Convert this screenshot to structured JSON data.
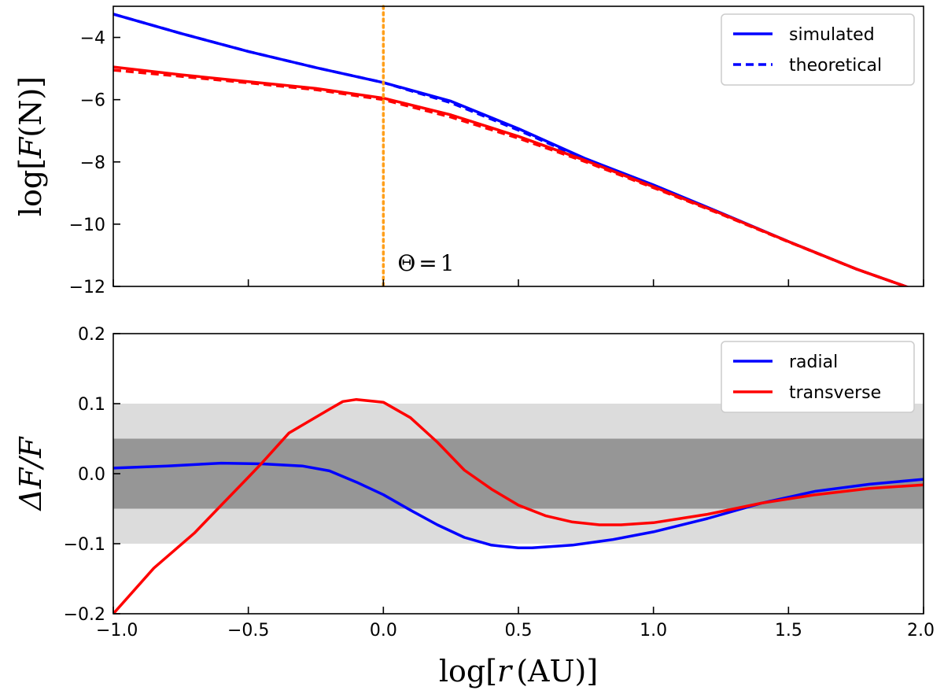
{
  "chart_data": [
    {
      "type": "line",
      "panel": "top",
      "ylabel_fn": "log",
      "ylabel_var": "F",
      "ylabel_unit": "(N)",
      "xlim": [
        -1.0,
        2.0
      ],
      "ylim": [
        -12,
        -3
      ],
      "yticks": [
        -12,
        -10,
        -8,
        -6,
        -4
      ],
      "ytick_labels": [
        "−12",
        "−10",
        "−8",
        "−6",
        "−4"
      ],
      "annotation": {
        "var": "Θ",
        "rel": "=",
        "val": "1",
        "x": 0.0
      },
      "vline": {
        "x": 0.0,
        "color": "#ff9f1a",
        "style": "dotted"
      },
      "legend": {
        "placement": "top-right",
        "entries": [
          "simulated",
          "theoretical"
        ]
      },
      "series": [
        {
          "name": "blue simulated",
          "color": "#0000ff",
          "dash": "solid",
          "x": [
            -1.0,
            -0.75,
            -0.5,
            -0.25,
            0.0,
            0.25,
            0.5,
            0.75,
            1.0,
            1.25,
            1.5,
            1.75,
            1.95
          ],
          "y": [
            -3.25,
            -3.87,
            -4.45,
            -4.97,
            -5.45,
            -6.05,
            -6.93,
            -7.9,
            -8.74,
            -9.64,
            -10.56,
            -11.44,
            -12.05
          ]
        },
        {
          "name": "blue theoretical",
          "color": "#0000ff",
          "dash": "dashed",
          "x": [
            -1.0,
            -0.75,
            -0.5,
            -0.25,
            0.0,
            0.25,
            0.5,
            0.75,
            1.0,
            1.25,
            1.5,
            1.75,
            1.95
          ],
          "y": [
            -3.25,
            -3.87,
            -4.45,
            -4.97,
            -5.45,
            -6.1,
            -6.98,
            -7.93,
            -8.76,
            -9.65,
            -10.56,
            -11.44,
            -12.05
          ]
        },
        {
          "name": "red simulated",
          "color": "#ff0000",
          "dash": "solid",
          "x": [
            -1.0,
            -0.75,
            -0.5,
            -0.25,
            0.0,
            0.25,
            0.5,
            0.75,
            1.0,
            1.25,
            1.5,
            1.75,
            1.95
          ],
          "y": [
            -4.95,
            -5.2,
            -5.42,
            -5.64,
            -5.95,
            -6.49,
            -7.18,
            -7.96,
            -8.8,
            -9.66,
            -10.56,
            -11.44,
            -12.05
          ]
        },
        {
          "name": "red theoretical",
          "color": "#ff0000",
          "dash": "dashed",
          "x": [
            -1.0,
            -0.75,
            -0.5,
            -0.25,
            0.0,
            0.25,
            0.5,
            0.75,
            1.0,
            1.25,
            1.5,
            1.75,
            1.95
          ],
          "y": [
            -5.05,
            -5.25,
            -5.46,
            -5.68,
            -6.0,
            -6.56,
            -7.24,
            -8.0,
            -8.83,
            -9.68,
            -10.57,
            -11.44,
            -12.05
          ]
        }
      ]
    },
    {
      "type": "line",
      "panel": "bottom",
      "xlabel_fn": "log",
      "xlabel_var": "r",
      "xlabel_unit": "(AU)",
      "ylabel_var": "ΔF/F",
      "xlim": [
        -1.0,
        2.0
      ],
      "ylim": [
        -0.2,
        0.2
      ],
      "xticks": [
        -1.0,
        -0.5,
        0.0,
        0.5,
        1.0,
        1.5,
        2.0
      ],
      "xtick_labels": [
        "−1.0",
        "−0.5",
        "0.0",
        "0.5",
        "1.0",
        "1.5",
        "2.0"
      ],
      "yticks": [
        -0.2,
        -0.1,
        0.0,
        0.1,
        0.2
      ],
      "ytick_labels": [
        "−0.2",
        "−0.1",
        "0.0",
        "0.1",
        "0.2"
      ],
      "bands": [
        {
          "y0": -0.1,
          "y1": 0.1,
          "color": "#dcdcdc"
        },
        {
          "y0": -0.05,
          "y1": 0.05,
          "color": "#969696"
        }
      ],
      "legend": {
        "placement": "top-right",
        "entries": [
          "radial",
          "transverse"
        ]
      },
      "series": [
        {
          "name": "radial",
          "color": "#0000ff",
          "x": [
            -1.0,
            -0.8,
            -0.6,
            -0.45,
            -0.3,
            -0.2,
            -0.1,
            0.0,
            0.1,
            0.2,
            0.3,
            0.4,
            0.5,
            0.55,
            0.7,
            0.85,
            1.0,
            1.2,
            1.4,
            1.6,
            1.8,
            2.0
          ],
          "y": [
            0.008,
            0.011,
            0.015,
            0.014,
            0.011,
            0.004,
            -0.012,
            -0.03,
            -0.052,
            -0.073,
            -0.091,
            -0.102,
            -0.106,
            -0.106,
            -0.102,
            -0.094,
            -0.083,
            -0.064,
            -0.042,
            -0.025,
            -0.015,
            -0.008
          ]
        },
        {
          "name": "transverse",
          "color": "#ff0000",
          "x": [
            -1.0,
            -0.85,
            -0.7,
            -0.6,
            -0.5,
            -0.45,
            -0.35,
            -0.2,
            -0.15,
            -0.1,
            0.0,
            0.1,
            0.2,
            0.3,
            0.4,
            0.5,
            0.6,
            0.7,
            0.8,
            0.88,
            1.0,
            1.2,
            1.4,
            1.6,
            1.8,
            2.0
          ],
          "y": [
            -0.2,
            -0.135,
            -0.085,
            -0.045,
            -0.005,
            0.015,
            0.058,
            0.092,
            0.103,
            0.106,
            0.102,
            0.08,
            0.045,
            0.005,
            -0.022,
            -0.045,
            -0.06,
            -0.069,
            -0.073,
            -0.073,
            -0.07,
            -0.058,
            -0.042,
            -0.03,
            -0.021,
            -0.016
          ]
        }
      ]
    }
  ]
}
